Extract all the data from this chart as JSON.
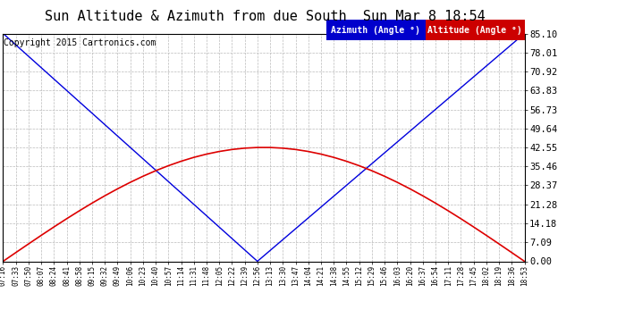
{
  "title": "Sun Altitude & Azimuth from due South  Sun Mar 8 18:54",
  "copyright": "Copyright 2015 Cartronics.com",
  "yticks": [
    0.0,
    7.09,
    14.18,
    21.28,
    28.37,
    35.46,
    42.55,
    49.64,
    56.73,
    63.83,
    70.92,
    78.01,
    85.1
  ],
  "ymax": 85.1,
  "ymin": 0.0,
  "xtick_labels": [
    "07:16",
    "07:33",
    "07:50",
    "08:07",
    "08:24",
    "08:41",
    "08:58",
    "09:15",
    "09:32",
    "09:49",
    "10:06",
    "10:23",
    "10:40",
    "10:57",
    "11:14",
    "11:31",
    "11:48",
    "12:05",
    "12:22",
    "12:39",
    "12:56",
    "13:13",
    "13:30",
    "13:47",
    "14:04",
    "14:21",
    "14:38",
    "14:55",
    "15:12",
    "15:29",
    "15:46",
    "16:03",
    "16:20",
    "16:37",
    "16:54",
    "17:11",
    "17:28",
    "17:45",
    "18:02",
    "18:19",
    "18:36",
    "18:53"
  ],
  "azimuth_color": "#0000dd",
  "altitude_color": "#dd0000",
  "legend_az_bg": "#0000cc",
  "legend_alt_bg": "#cc0000",
  "background_color": "#ffffff",
  "grid_color": "#bbbbbb",
  "title_fontsize": 11,
  "copyright_fontsize": 7,
  "legend_fontsize": 7,
  "noon_idx": 20,
  "az_max": 85.1,
  "alt_max": 42.55
}
